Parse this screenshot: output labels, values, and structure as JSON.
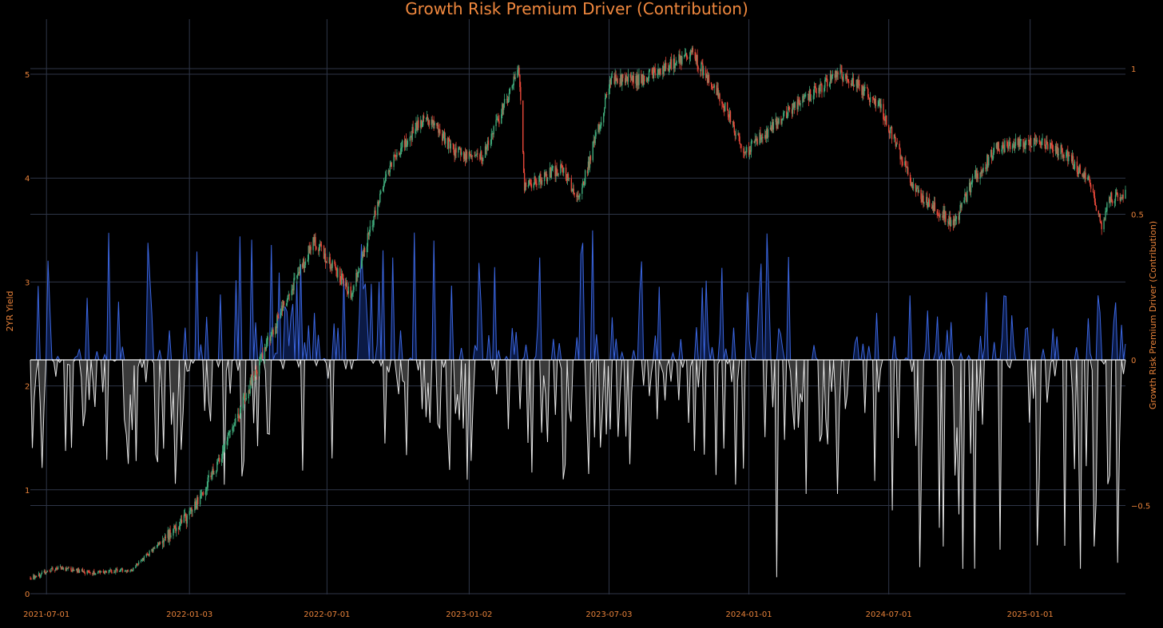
{
  "chart_data": {
    "type": "line",
    "title": "Growth Risk Premium Driver (Contribution)",
    "ylabel_left": "2YR Yield",
    "ylabel_right": "Growth Risk Premium Driver (Contribution)",
    "x_ticks": [
      "2021-07-01",
      "2022-01-03",
      "2022-07-01",
      "2023-01-02",
      "2023-07-03",
      "2024-01-01",
      "2024-07-01",
      "2025-01-01"
    ],
    "y_left_ticks": [
      0,
      1,
      2,
      3,
      4,
      5
    ],
    "y_right_ticks": [
      "1",
      "0.5",
      "0",
      "−0.5"
    ],
    "y_left_range": [
      0,
      5.3
    ],
    "y_right_range": [
      -0.8,
      1
    ],
    "x_range": [
      "2021-06-10",
      "2025-05-05"
    ],
    "grid": true,
    "colors": {
      "background": "#000000",
      "accent": "#f0883e",
      "candle_up": "#3fa97a",
      "candle_down": "#e8483a",
      "positive_line": "#3b66e0",
      "positive_fill": "#0b1a45",
      "negative_line": "#e4e4e4",
      "negative_fill": "#3a3a3a",
      "zero_line": "#ffffff",
      "grid": "#2f3648"
    },
    "series": [
      {
        "name": "2YR Yield",
        "kind": "candlestick",
        "axis": "left",
        "anchors": [
          [
            "2021-06-10",
            0.15
          ],
          [
            "2021-07-15",
            0.25
          ],
          [
            "2021-09-01",
            0.2
          ],
          [
            "2021-10-20",
            0.23
          ],
          [
            "2021-11-20",
            0.45
          ],
          [
            "2021-12-31",
            0.73
          ],
          [
            "2022-02-10",
            1.25
          ],
          [
            "2022-03-20",
            1.95
          ],
          [
            "2022-05-01",
            2.7
          ],
          [
            "2022-06-14",
            3.4
          ],
          [
            "2022-08-01",
            2.9
          ],
          [
            "2022-09-25",
            4.2
          ],
          [
            "2022-11-07",
            4.6
          ],
          [
            "2022-12-15",
            4.25
          ],
          [
            "2023-01-20",
            4.2
          ],
          [
            "2023-03-08",
            5.05
          ],
          [
            "2023-03-15",
            3.9
          ],
          [
            "2023-05-01",
            4.1
          ],
          [
            "2023-05-25",
            3.8
          ],
          [
            "2023-07-06",
            4.95
          ],
          [
            "2023-08-15",
            4.95
          ],
          [
            "2023-10-19",
            5.2
          ],
          [
            "2023-11-30",
            4.7
          ],
          [
            "2023-12-28",
            4.25
          ],
          [
            "2024-02-15",
            4.6
          ],
          [
            "2024-04-25",
            5.0
          ],
          [
            "2024-05-20",
            4.9
          ],
          [
            "2024-06-20",
            4.7
          ],
          [
            "2024-08-02",
            3.9
          ],
          [
            "2024-09-24",
            3.55
          ],
          [
            "2024-10-20",
            4.0
          ],
          [
            "2024-11-20",
            4.3
          ],
          [
            "2025-01-10",
            4.35
          ],
          [
            "2025-02-14",
            4.25
          ],
          [
            "2025-03-20",
            3.95
          ],
          [
            "2025-04-04",
            3.55
          ],
          [
            "2025-04-15",
            3.8
          ],
          [
            "2025-05-05",
            3.85
          ]
        ]
      },
      {
        "name": "Growth Risk Premium Driver (Contribution)",
        "kind": "line",
        "axis": "right",
        "positive_peak": 0.45,
        "negative_trough": -0.78
      }
    ]
  }
}
